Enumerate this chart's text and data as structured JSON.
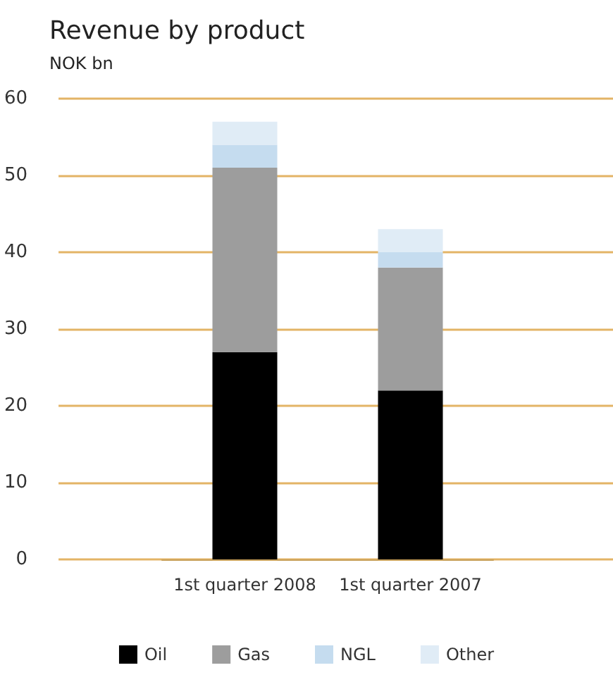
{
  "chart_data": {
    "type": "bar",
    "title": "Revenue by product",
    "subtitle": "NOK bn",
    "stacked": true,
    "categories": [
      "1st quarter 2008",
      "1st quarter 2007"
    ],
    "series": [
      {
        "name": "Oil",
        "color": "#000000",
        "values": [
          27,
          22
        ]
      },
      {
        "name": "Gas",
        "color": "#9d9d9d",
        "values": [
          24,
          16
        ]
      },
      {
        "name": "NGL",
        "color": "#c5dcef",
        "values": [
          3,
          2
        ]
      },
      {
        "name": "Other",
        "color": "#e0ecf6",
        "values": [
          3,
          3
        ]
      }
    ],
    "ylim": [
      0,
      60
    ],
    "yticks": [
      0,
      10,
      20,
      30,
      40,
      50,
      60
    ],
    "grid": "y",
    "legend": "bottom"
  }
}
